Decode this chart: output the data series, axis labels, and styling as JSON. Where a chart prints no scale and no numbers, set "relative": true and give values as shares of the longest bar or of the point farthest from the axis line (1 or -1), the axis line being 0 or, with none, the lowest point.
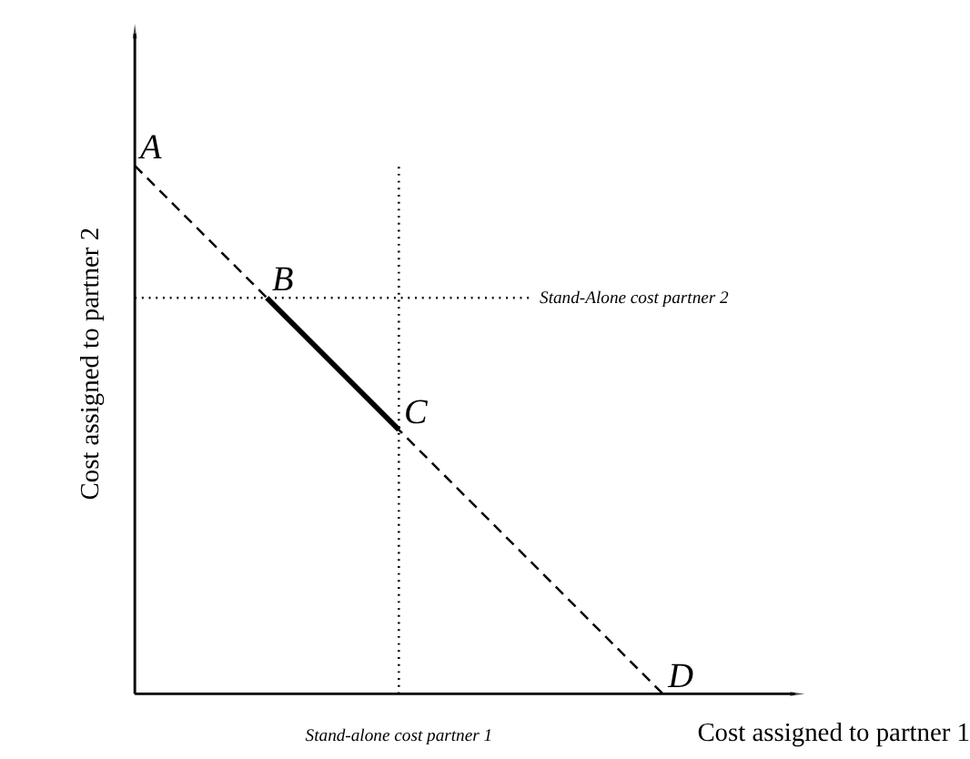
{
  "chart_data": {
    "type": "line",
    "relative": true,
    "xlabel": "Cost assigned to partner 1",
    "ylabel": "Cost assigned to partner 2",
    "categories": [
      null,
      null,
      null,
      null,
      null
    ],
    "series": [
      {
        "color": "#000000",
        "values": [
          1,
          0.75,
          0.5,
          0.25,
          0
        ],
        "line_style": "dashed"
      },
      {
        "color": "#000000",
        "values": [
          null,
          0.75,
          0.5,
          null,
          null
        ],
        "line_style": "solid"
      }
    ],
    "ref_lines": [
      {
        "axis": "y",
        "value": 0.75,
        "label": "Stand-Alone cost partner 2",
        "line_style": "dotted",
        "color": "#000000"
      }
    ],
    "annotations": [
      "A",
      "B",
      "C",
      "D",
      "Stand-alone cost partner 1"
    ],
    "grid": false,
    "marker": "none"
  }
}
